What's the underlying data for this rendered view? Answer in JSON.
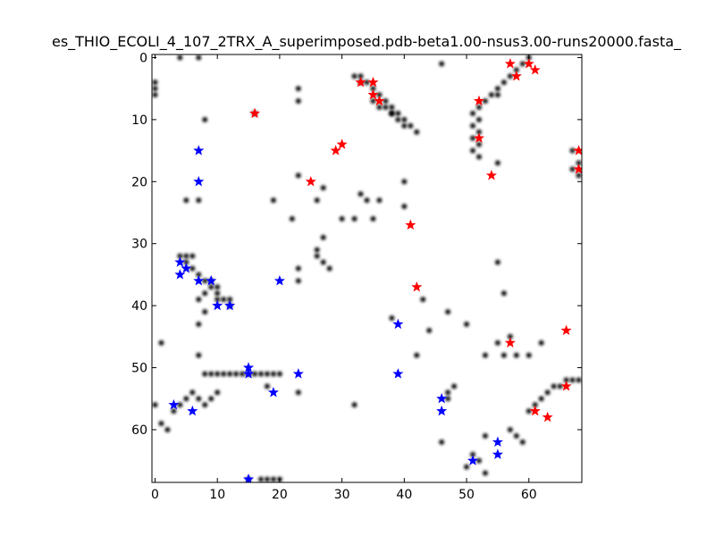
{
  "chart_data": {
    "type": "scatter",
    "title": "es_THIO_ECOLI_4_107_2TRX_A_superimposed.pdb-beta1.00-nsus3.00-runs20000.fasta_",
    "xlabel": "",
    "ylabel": "",
    "xlim": [
      -0.5,
      68.5
    ],
    "ylim": [
      68.5,
      -0.5
    ],
    "y_inverted": true,
    "grid": false,
    "xticks": [
      0,
      10,
      20,
      30,
      40,
      50,
      60
    ],
    "yticks": [
      0,
      10,
      20,
      30,
      40,
      50,
      60
    ],
    "xtick_labels": [
      "0",
      "10",
      "20",
      "30",
      "40",
      "50",
      "60"
    ],
    "ytick_labels": [
      "0",
      "10",
      "20",
      "30",
      "40",
      "50",
      "60"
    ],
    "colors": {
      "heatmap_dot": "#000000",
      "red_star": "#ff0000",
      "blue_star": "#0000ff"
    },
    "heatmap_cells": [
      [
        4,
        0
      ],
      [
        7,
        0
      ],
      [
        46,
        1
      ],
      [
        0,
        4
      ],
      [
        33,
        4
      ],
      [
        34,
        4
      ],
      [
        35,
        5
      ],
      [
        0,
        5
      ],
      [
        23,
        5
      ],
      [
        55,
        5
      ],
      [
        56,
        4
      ],
      [
        57,
        3
      ],
      [
        58,
        2
      ],
      [
        59,
        1
      ],
      [
        60,
        0
      ],
      [
        32,
        3
      ],
      [
        33,
        3
      ],
      [
        36,
        6
      ],
      [
        37,
        7
      ],
      [
        38,
        8
      ],
      [
        39,
        9
      ],
      [
        40,
        10
      ],
      [
        41,
        11
      ],
      [
        42,
        12
      ],
      [
        37,
        8
      ],
      [
        38,
        9
      ],
      [
        39,
        10
      ],
      [
        40,
        11
      ],
      [
        54,
        6
      ],
      [
        53,
        7
      ],
      [
        55,
        6
      ],
      [
        52,
        8
      ],
      [
        51,
        9
      ],
      [
        52,
        10
      ],
      [
        51,
        11
      ],
      [
        52,
        12
      ],
      [
        51,
        13
      ],
      [
        52,
        14
      ],
      [
        51,
        15
      ],
      [
        52,
        16
      ],
      [
        0,
        6
      ],
      [
        23,
        7
      ],
      [
        38,
        9
      ],
      [
        36,
        8
      ],
      [
        35,
        7
      ],
      [
        8,
        10
      ],
      [
        16,
        9
      ],
      [
        55,
        17
      ],
      [
        67,
        15
      ],
      [
        68,
        17
      ],
      [
        67,
        18
      ],
      [
        68,
        19
      ],
      [
        23,
        19
      ],
      [
        27,
        21
      ],
      [
        33,
        22
      ],
      [
        40,
        20
      ],
      [
        19,
        23
      ],
      [
        26,
        23
      ],
      [
        34,
        23
      ],
      [
        36,
        23
      ],
      [
        40,
        24
      ],
      [
        22,
        26
      ],
      [
        30,
        26
      ],
      [
        32,
        26
      ],
      [
        35,
        26
      ],
      [
        5,
        23
      ],
      [
        7,
        23
      ],
      [
        27,
        29
      ],
      [
        26,
        31
      ],
      [
        26,
        32
      ],
      [
        27,
        33
      ],
      [
        28,
        34
      ],
      [
        23,
        34
      ],
      [
        23,
        36
      ],
      [
        4,
        32
      ],
      [
        5,
        32
      ],
      [
        6,
        32
      ],
      [
        5,
        33
      ],
      [
        6,
        34
      ],
      [
        7,
        35
      ],
      [
        8,
        36
      ],
      [
        9,
        37
      ],
      [
        10,
        38
      ],
      [
        11,
        39
      ],
      [
        8,
        38
      ],
      [
        10,
        39
      ],
      [
        9,
        36
      ],
      [
        10,
        37
      ],
      [
        12,
        40
      ],
      [
        12,
        39
      ],
      [
        7,
        39
      ],
      [
        8,
        41
      ],
      [
        7,
        43
      ],
      [
        38,
        42
      ],
      [
        43,
        39
      ],
      [
        47,
        41
      ],
      [
        44,
        44
      ],
      [
        50,
        43
      ],
      [
        56,
        38
      ],
      [
        55,
        33
      ],
      [
        1,
        46
      ],
      [
        55,
        46
      ],
      [
        57,
        45
      ],
      [
        62,
        46
      ],
      [
        53,
        48
      ],
      [
        56,
        48
      ],
      [
        58,
        48
      ],
      [
        60,
        48
      ],
      [
        42,
        48
      ],
      [
        7,
        48
      ],
      [
        8,
        51
      ],
      [
        9,
        51
      ],
      [
        10,
        51
      ],
      [
        11,
        51
      ],
      [
        12,
        51
      ],
      [
        13,
        51
      ],
      [
        14,
        51
      ],
      [
        15,
        51
      ],
      [
        16,
        51
      ],
      [
        17,
        51
      ],
      [
        18,
        51
      ],
      [
        19,
        51
      ],
      [
        20,
        51
      ],
      [
        18,
        53
      ],
      [
        23,
        54
      ],
      [
        32,
        56
      ],
      [
        3,
        57
      ],
      [
        4,
        56
      ],
      [
        5,
        55
      ],
      [
        6,
        54
      ],
      [
        7,
        55
      ],
      [
        8,
        56
      ],
      [
        9,
        55
      ],
      [
        10,
        54
      ],
      [
        1,
        59
      ],
      [
        2,
        60
      ],
      [
        0,
        56
      ],
      [
        48,
        53
      ],
      [
        47,
        54
      ],
      [
        47,
        55
      ],
      [
        62,
        55
      ],
      [
        63,
        54
      ],
      [
        64,
        53
      ],
      [
        65,
        53
      ],
      [
        66,
        52
      ],
      [
        67,
        52
      ],
      [
        68,
        52
      ],
      [
        46,
        62
      ],
      [
        53,
        61
      ],
      [
        51,
        64
      ],
      [
        52,
        65
      ],
      [
        50,
        66
      ],
      [
        53,
        67
      ],
      [
        57,
        60
      ],
      [
        58,
        61
      ],
      [
        59,
        62
      ],
      [
        61,
        56
      ],
      [
        60,
        57
      ],
      [
        17,
        68
      ],
      [
        18,
        68
      ],
      [
        19,
        68
      ],
      [
        20,
        68
      ],
      [
        15,
        68
      ]
    ],
    "series": [
      {
        "marker": "star",
        "color": "#ff0000",
        "points": [
          [
            57,
            1
          ],
          [
            61,
            2
          ],
          [
            60,
            1
          ],
          [
            58,
            3
          ],
          [
            33,
            4
          ],
          [
            35,
            4
          ],
          [
            35,
            6
          ],
          [
            36,
            7
          ],
          [
            52,
            7
          ],
          [
            16,
            9
          ],
          [
            52,
            13
          ],
          [
            30,
            14
          ],
          [
            29,
            15
          ],
          [
            54,
            19
          ],
          [
            68,
            15
          ],
          [
            68,
            18
          ],
          [
            25,
            20
          ],
          [
            41,
            27
          ],
          [
            42,
            37
          ],
          [
            66,
            44
          ],
          [
            57,
            46
          ],
          [
            66,
            53
          ],
          [
            61,
            57
          ],
          [
            63,
            58
          ]
        ]
      },
      {
        "marker": "star",
        "color": "#0000ff",
        "points": [
          [
            7,
            15
          ],
          [
            7,
            20
          ],
          [
            4,
            33
          ],
          [
            5,
            34
          ],
          [
            4,
            35
          ],
          [
            7,
            36
          ],
          [
            9,
            36
          ],
          [
            10,
            40
          ],
          [
            12,
            40
          ],
          [
            20,
            36
          ],
          [
            39,
            43
          ],
          [
            15,
            50
          ],
          [
            15,
            51
          ],
          [
            23,
            51
          ],
          [
            39,
            51
          ],
          [
            19,
            54
          ],
          [
            46,
            55
          ],
          [
            3,
            56
          ],
          [
            6,
            57
          ],
          [
            46,
            57
          ],
          [
            55,
            62
          ],
          [
            55,
            64
          ],
          [
            51,
            65
          ],
          [
            15,
            68
          ]
        ]
      }
    ]
  }
}
